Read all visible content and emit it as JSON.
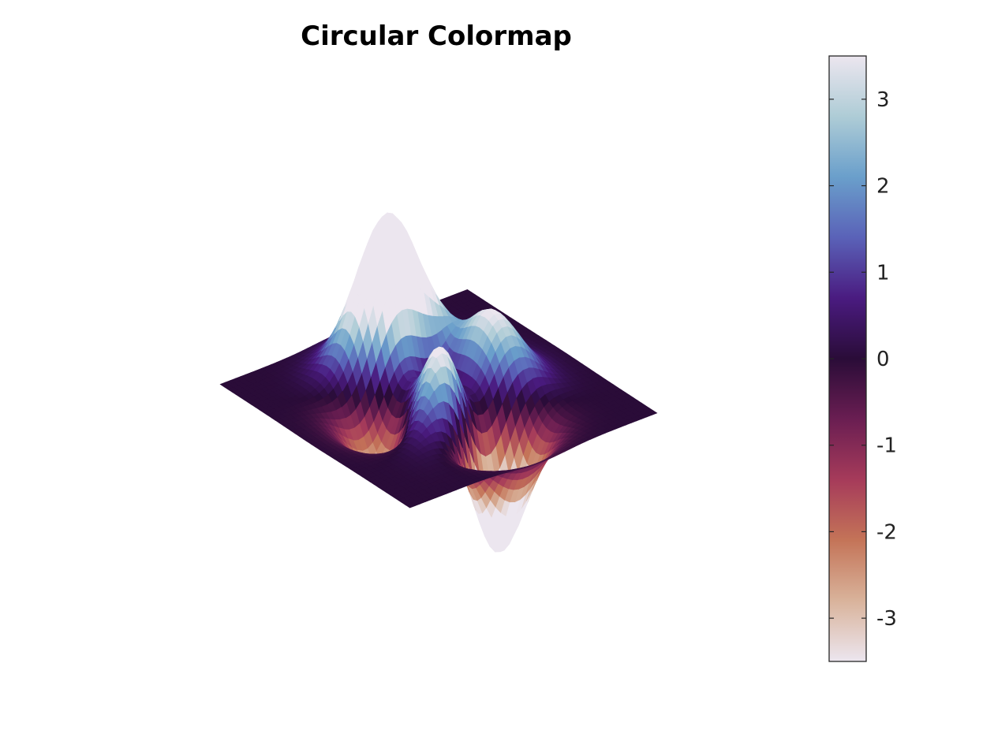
{
  "chart_data": {
    "type": "surface",
    "title": "Circular Colormap",
    "surface": {
      "function": "peaks",
      "x_range": [
        -3,
        3
      ],
      "y_range": [
        -3,
        3
      ],
      "z_range": [
        -6.55,
        8.1
      ]
    },
    "colorbar": {
      "limits": [
        -3.5,
        3.5
      ],
      "ticks": [
        3,
        2,
        1,
        0,
        -1,
        -2,
        -3
      ],
      "tick_labels": [
        "3",
        "2",
        "1",
        "0",
        "-1",
        "-2",
        "-3"
      ],
      "colormap": "circular",
      "colormap_stops": [
        "#ece6ef",
        "#aeccd6",
        "#6a9fcb",
        "#5a62b8",
        "#4a1b80",
        "#2a0c38",
        "#6a1e52",
        "#a63b5a",
        "#c47458",
        "#d9b39b",
        "#ece6ef"
      ]
    },
    "grid": false,
    "axes_visible": false
  }
}
